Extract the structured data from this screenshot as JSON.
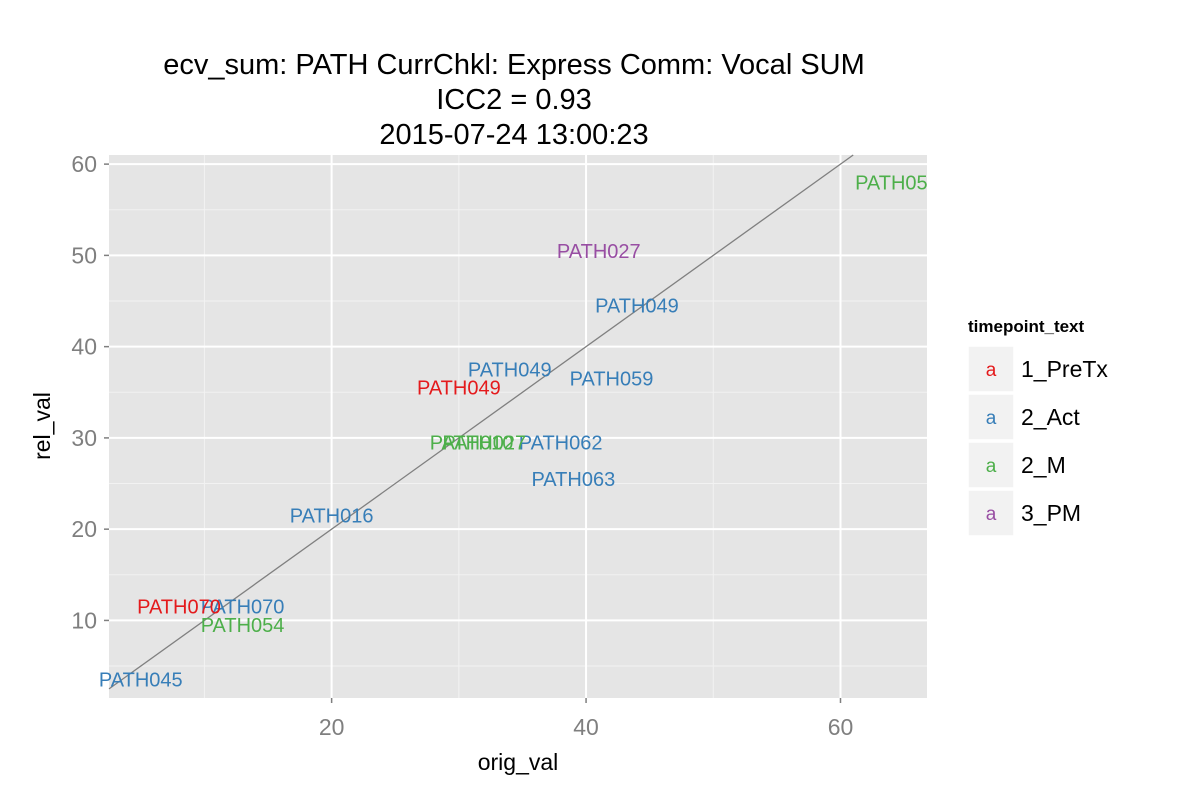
{
  "chart_data": {
    "type": "scatter",
    "title_lines": [
      "ecv_sum: PATH CurrChkl: Express Comm: Vocal SUM",
      "ICC2 = 0.93",
      "2015-07-24 13:00:23"
    ],
    "xlabel": "orig_val",
    "ylabel": "rel_val",
    "xlim": [
      2.5,
      66.8
    ],
    "ylim": [
      1.5,
      61
    ],
    "x_ticks": [
      20,
      40,
      60
    ],
    "y_ticks": [
      10,
      20,
      30,
      40,
      50,
      60
    ],
    "grid": true,
    "reference_line": {
      "slope": 1,
      "intercept": 0,
      "color": "#808080"
    },
    "legend": {
      "title": "timepoint_text",
      "position": "right",
      "key_glyph": "a",
      "entries": [
        {
          "label": "1_PreTx",
          "color": "#e41a1c"
        },
        {
          "label": "2_Act",
          "color": "#377eb8"
        },
        {
          "label": "2_M",
          "color": "#4daf4a"
        },
        {
          "label": "3_PM",
          "color": "#984ea3"
        }
      ]
    },
    "points": [
      {
        "label": "PATH05",
        "x": 64,
        "y": 58,
        "group": "2_M"
      },
      {
        "label": "PATH027",
        "x": 41,
        "y": 50.5,
        "group": "3_PM"
      },
      {
        "label": "PATH049",
        "x": 44,
        "y": 44.5,
        "group": "2_Act"
      },
      {
        "label": "PATH049",
        "x": 34,
        "y": 37.5,
        "group": "2_Act"
      },
      {
        "label": "PATH059",
        "x": 42,
        "y": 36.5,
        "group": "2_Act"
      },
      {
        "label": "PATH049",
        "x": 30,
        "y": 35.5,
        "group": "1_PreTx"
      },
      {
        "label": "PATH062",
        "x": 38,
        "y": 29.5,
        "group": "2_Act"
      },
      {
        "label": "PATH010",
        "x": 31,
        "y": 29.5,
        "group": "2_M"
      },
      {
        "label": "PATH027",
        "x": 32,
        "y": 29.5,
        "group": "2_M"
      },
      {
        "label": "PATH063",
        "x": 39,
        "y": 25.5,
        "group": "2_Act"
      },
      {
        "label": "PATH016",
        "x": 20,
        "y": 21.5,
        "group": "2_Act"
      },
      {
        "label": "PATH070",
        "x": 13,
        "y": 11.5,
        "group": "2_Act"
      },
      {
        "label": "PATH070",
        "x": 8,
        "y": 11.5,
        "group": "1_PreTx"
      },
      {
        "label": "PATH054",
        "x": 13,
        "y": 9.5,
        "group": "2_M"
      },
      {
        "label": "PATH045",
        "x": 5,
        "y": 3.5,
        "group": "2_Act"
      }
    ]
  }
}
